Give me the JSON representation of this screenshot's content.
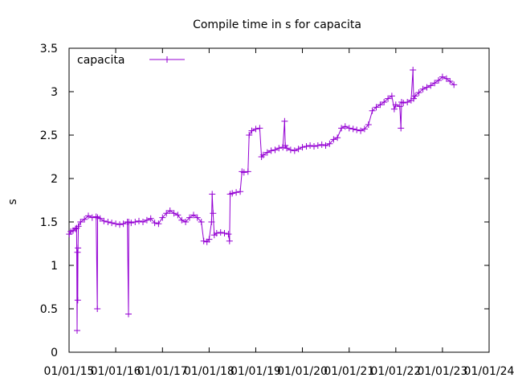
{
  "chart_data": {
    "type": "line",
    "title": "Compile time in s for capacita",
    "xlabel": "",
    "ylabel": "s",
    "ylim": [
      0,
      3.5
    ],
    "yticks": [
      0,
      0.5,
      1,
      1.5,
      2,
      2.5,
      3,
      3.5
    ],
    "y_tick_labels": [
      "0",
      "0.5",
      "1",
      "1.5",
      "2",
      "2.5",
      "3",
      "3.5"
    ],
    "x_tick_labels": [
      "01/01/15",
      "01/01/16",
      "01/01/17",
      "01/01/18",
      "01/01/19",
      "01/01/20",
      "01/01/21",
      "01/01/22",
      "01/01/23",
      "01/01/24"
    ],
    "xlim": [
      "01/01/15",
      "01/01/24"
    ],
    "grid": false,
    "legend_position": "top-left",
    "colors": {
      "series": "#9400d3",
      "axis": "#000000"
    },
    "series": [
      {
        "name": "capacita",
        "marker": "plus",
        "points": [
          [
            "01/03/15",
            1.36
          ],
          [
            "01/15/15",
            1.39
          ],
          [
            "02/01/15",
            1.4
          ],
          [
            "02/20/15",
            1.42
          ],
          [
            "03/01/15",
            1.43
          ],
          [
            "03/05/15",
            0.25
          ],
          [
            "03/08/15",
            1.15
          ],
          [
            "03/10/15",
            0.6
          ],
          [
            "03/12/15",
            1.2
          ],
          [
            "03/15/15",
            1.45
          ],
          [
            "04/01/15",
            1.5
          ],
          [
            "05/01/15",
            1.53
          ],
          [
            "06/01/15",
            1.57
          ],
          [
            "07/01/15",
            1.55
          ],
          [
            "08/01/15",
            1.56
          ],
          [
            "08/10/15",
            0.5
          ],
          [
            "08/12/15",
            1.55
          ],
          [
            "09/01/15",
            1.54
          ],
          [
            "10/01/15",
            1.51
          ],
          [
            "11/01/15",
            1.5
          ],
          [
            "12/01/15",
            1.49
          ],
          [
            "01/01/16",
            1.48
          ],
          [
            "02/01/16",
            1.47
          ],
          [
            "03/01/16",
            1.48
          ],
          [
            "04/01/16",
            1.5
          ],
          [
            "04/10/16",
            0.44
          ],
          [
            "04/12/16",
            1.5
          ],
          [
            "05/01/16",
            1.49
          ],
          [
            "06/01/16",
            1.5
          ],
          [
            "07/01/16",
            1.51
          ],
          [
            "08/01/16",
            1.5
          ],
          [
            "09/01/16",
            1.52
          ],
          [
            "10/01/16",
            1.54
          ],
          [
            "11/01/16",
            1.49
          ],
          [
            "12/01/16",
            1.48
          ],
          [
            "01/01/17",
            1.55
          ],
          [
            "02/01/17",
            1.6
          ],
          [
            "03/01/17",
            1.63
          ],
          [
            "04/01/17",
            1.6
          ],
          [
            "05/01/17",
            1.58
          ],
          [
            "06/01/17",
            1.52
          ],
          [
            "07/01/17",
            1.5
          ],
          [
            "08/01/17",
            1.55
          ],
          [
            "09/01/17",
            1.58
          ],
          [
            "10/01/17",
            1.55
          ],
          [
            "11/01/17",
            1.5
          ],
          [
            "11/20/17",
            1.28
          ],
          [
            "12/15/17",
            1.27
          ],
          [
            "01/01/18",
            1.3
          ],
          [
            "01/20/18",
            1.5
          ],
          [
            "01/25/18",
            1.82
          ],
          [
            "02/01/18",
            1.6
          ],
          [
            "02/10/18",
            1.35
          ],
          [
            "03/01/18",
            1.37
          ],
          [
            "04/01/18",
            1.38
          ],
          [
            "05/01/18",
            1.37
          ],
          [
            "06/01/18",
            1.36
          ],
          [
            "06/10/18",
            1.28
          ],
          [
            "06/15/18",
            1.82
          ],
          [
            "07/01/18",
            1.83
          ],
          [
            "08/01/18",
            1.84
          ],
          [
            "09/01/18",
            1.85
          ],
          [
            "09/15/18",
            2.08
          ],
          [
            "10/01/18",
            2.07
          ],
          [
            "11/01/18",
            2.08
          ],
          [
            "11/10/18",
            2.5
          ],
          [
            "12/01/18",
            2.55
          ],
          [
            "01/01/19",
            2.57
          ],
          [
            "02/01/19",
            2.58
          ],
          [
            "02/15/19",
            2.25
          ],
          [
            "03/01/19",
            2.27
          ],
          [
            "04/01/19",
            2.3
          ],
          [
            "05/01/19",
            2.32
          ],
          [
            "06/01/19",
            2.33
          ],
          [
            "07/01/19",
            2.35
          ],
          [
            "08/01/19",
            2.36
          ],
          [
            "08/15/19",
            2.66
          ],
          [
            "08/20/19",
            2.38
          ],
          [
            "09/01/19",
            2.35
          ],
          [
            "10/01/19",
            2.33
          ],
          [
            "11/01/19",
            2.32
          ],
          [
            "12/01/19",
            2.34
          ],
          [
            "01/01/20",
            2.36
          ],
          [
            "02/01/20",
            2.37
          ],
          [
            "03/01/20",
            2.38
          ],
          [
            "04/01/20",
            2.37
          ],
          [
            "05/01/20",
            2.38
          ],
          [
            "06/01/20",
            2.39
          ],
          [
            "07/01/20",
            2.38
          ],
          [
            "08/01/20",
            2.4
          ],
          [
            "09/01/20",
            2.45
          ],
          [
            "10/01/20",
            2.47
          ],
          [
            "11/01/20",
            2.58
          ],
          [
            "12/01/20",
            2.6
          ],
          [
            "01/01/21",
            2.58
          ],
          [
            "02/01/21",
            2.57
          ],
          [
            "03/01/21",
            2.56
          ],
          [
            "04/01/21",
            2.55
          ],
          [
            "05/01/21",
            2.57
          ],
          [
            "06/01/21",
            2.62
          ],
          [
            "07/01/21",
            2.78
          ],
          [
            "08/01/21",
            2.82
          ],
          [
            "09/01/21",
            2.85
          ],
          [
            "10/01/21",
            2.88
          ],
          [
            "11/01/21",
            2.92
          ],
          [
            "12/01/21",
            2.95
          ],
          [
            "12/20/21",
            2.8
          ],
          [
            "01/01/22",
            2.85
          ],
          [
            "02/01/22",
            2.83
          ],
          [
            "02/10/22",
            2.58
          ],
          [
            "02/15/22",
            2.88
          ],
          [
            "03/01/22",
            2.87
          ],
          [
            "04/01/22",
            2.88
          ],
          [
            "05/01/22",
            2.9
          ],
          [
            "05/15/22",
            3.25
          ],
          [
            "05/20/22",
            2.92
          ],
          [
            "06/01/22",
            2.95
          ],
          [
            "07/01/22",
            2.99
          ],
          [
            "08/01/22",
            3.03
          ],
          [
            "09/01/22",
            3.05
          ],
          [
            "10/01/22",
            3.07
          ],
          [
            "11/01/22",
            3.1
          ],
          [
            "12/01/22",
            3.13
          ],
          [
            "01/01/23",
            3.17
          ],
          [
            "02/01/23",
            3.15
          ],
          [
            "03/01/23",
            3.12
          ],
          [
            "04/01/23",
            3.08
          ]
        ]
      }
    ]
  }
}
